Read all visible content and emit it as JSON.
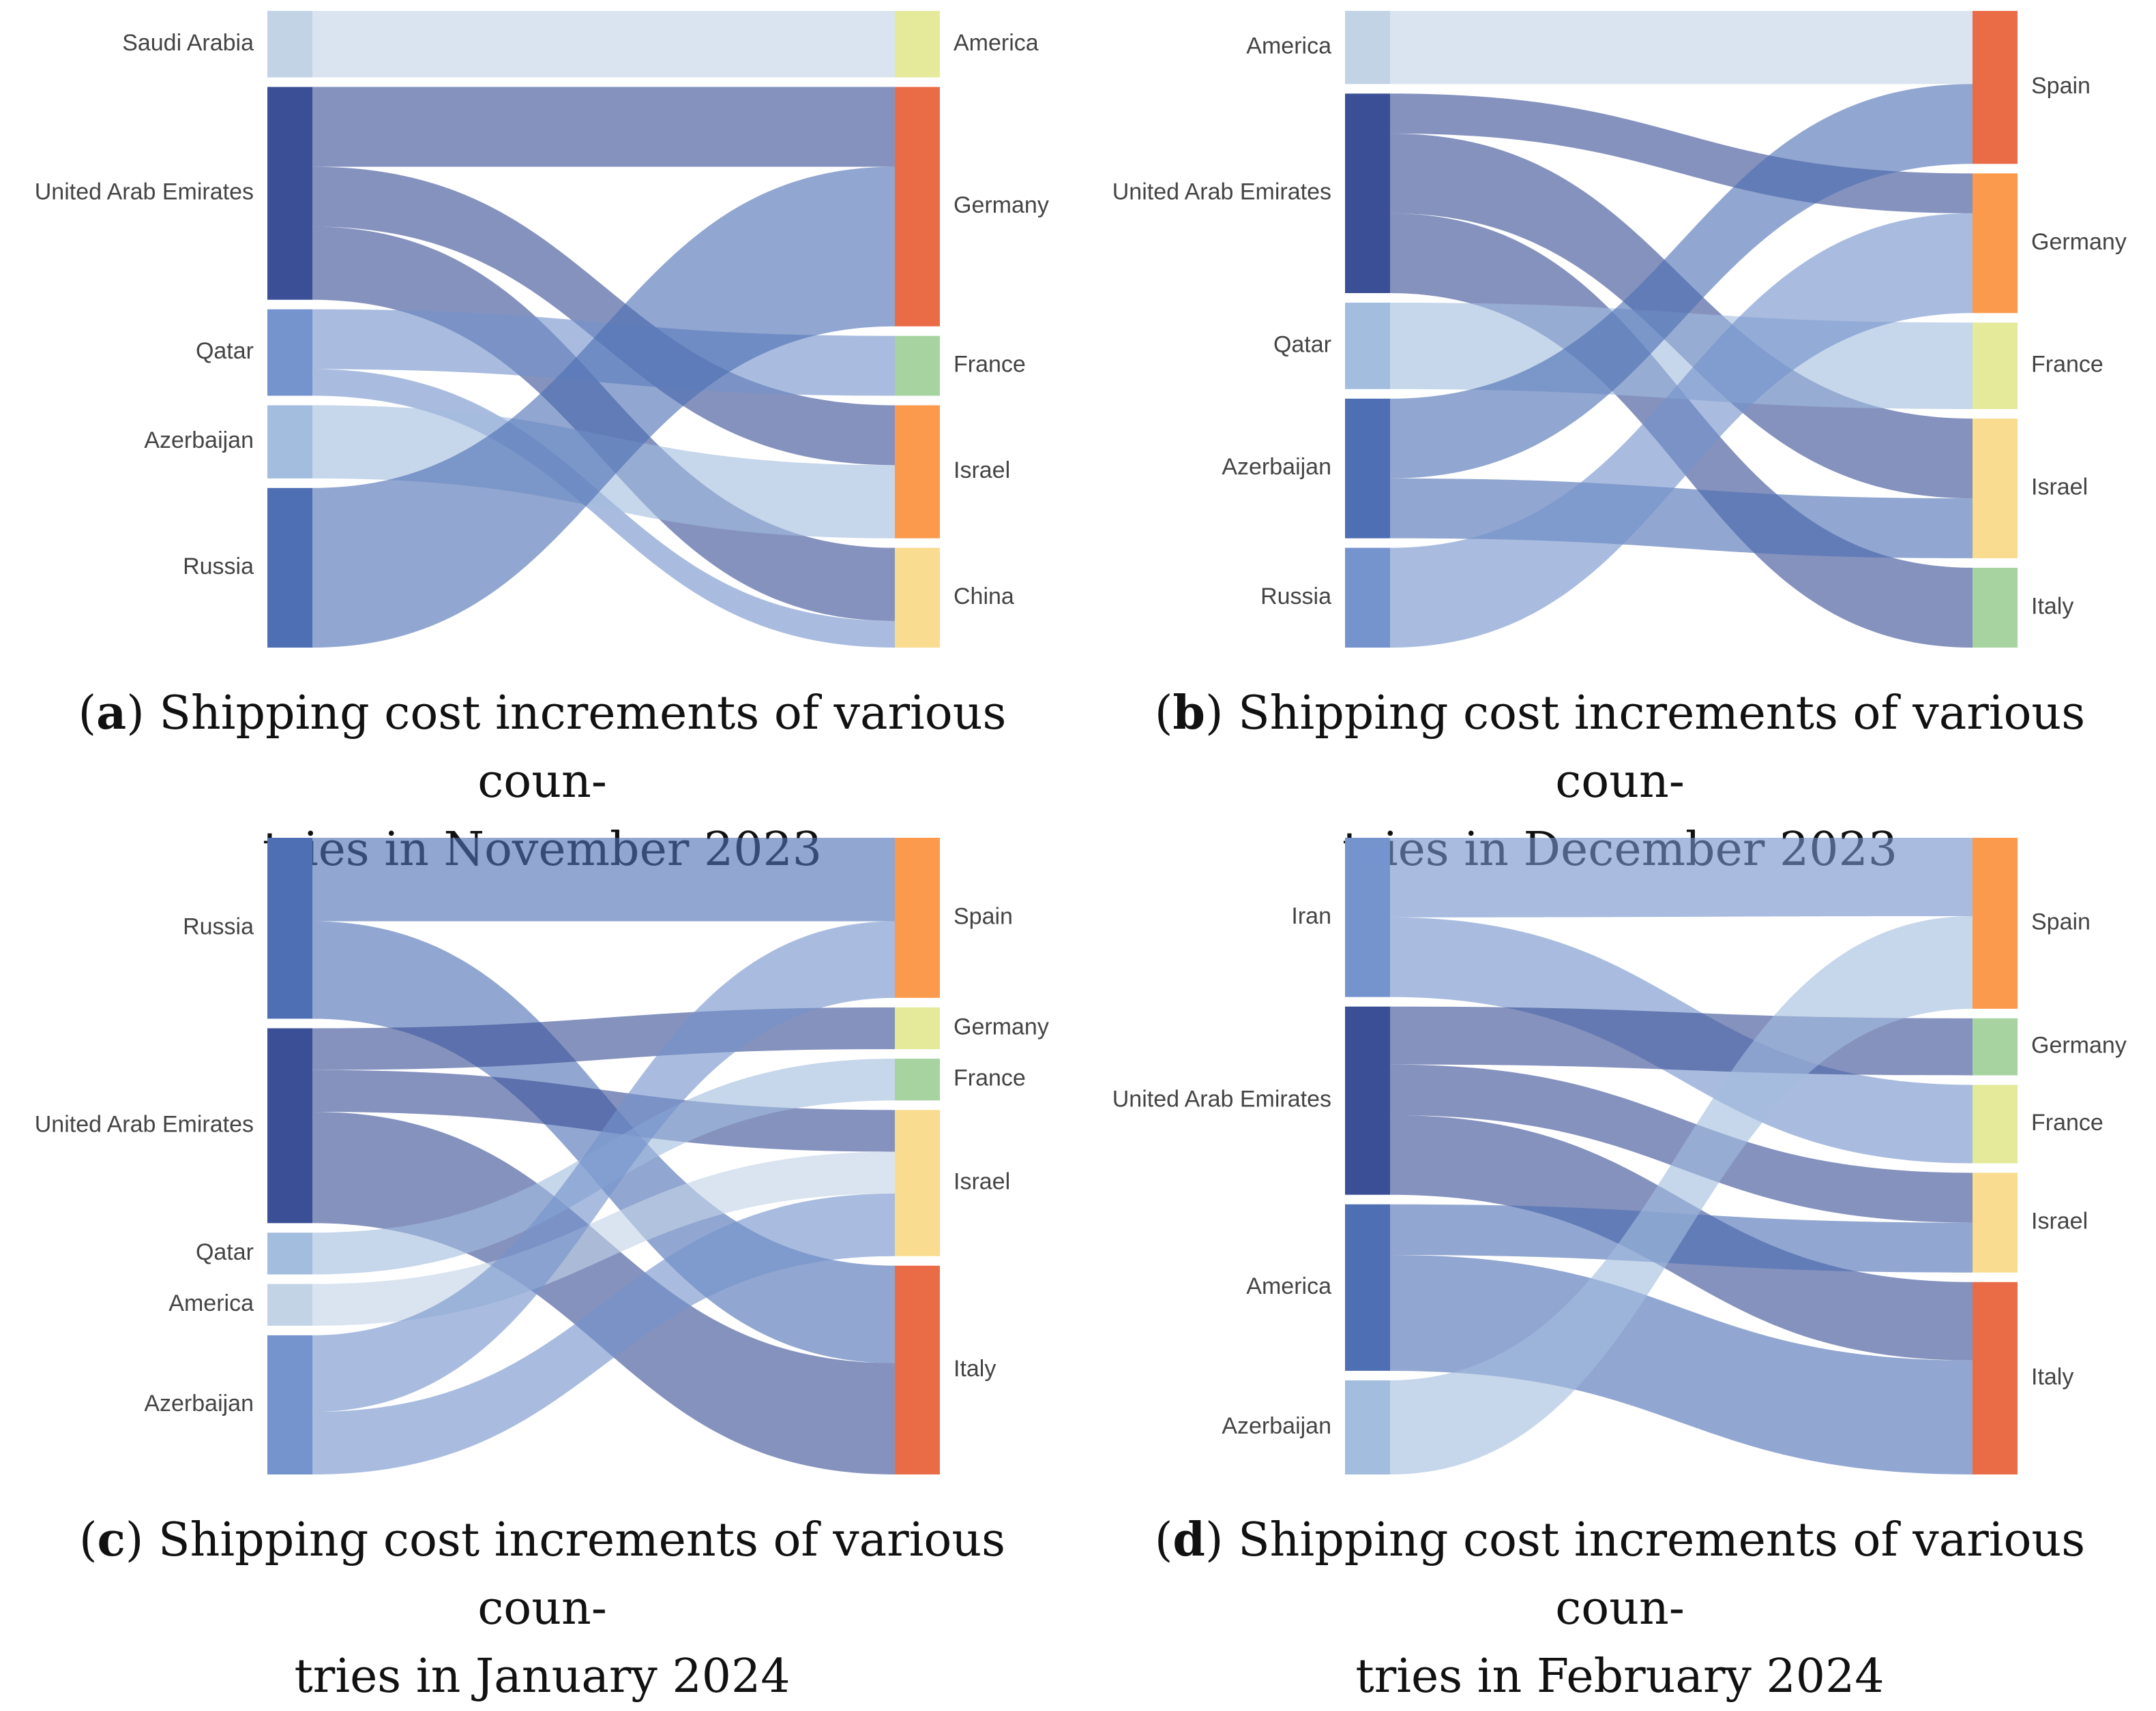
{
  "chart_data": [
    {
      "type": "sankey",
      "panel": "a",
      "caption_tag": "a",
      "caption_line1": "Shipping cost increments of various coun-",
      "caption_line2": "tries in November 2023",
      "sources": [
        {
          "name": "Saudi Arabia",
          "color": "#c3d3e6"
        },
        {
          "name": "United Arab Emirates",
          "color": "#3a4f96"
        },
        {
          "name": "Qatar",
          "color": "#7593cc"
        },
        {
          "name": "Azerbaijan",
          "color": "#a3bddf"
        },
        {
          "name": "Russia",
          "color": "#4e6fb3"
        }
      ],
      "targets": [
        {
          "name": "America",
          "color": "#e4ea99"
        },
        {
          "name": "Germany",
          "color": "#ea6c47"
        },
        {
          "name": "France",
          "color": "#a6d3a0"
        },
        {
          "name": "Israel",
          "color": "#fb9a4c"
        },
        {
          "name": "China",
          "color": "#f9dc8f"
        }
      ],
      "links": [
        {
          "source": "Saudi Arabia",
          "target": "America",
          "value": 10
        },
        {
          "source": "United Arab Emirates",
          "target": "Germany",
          "value": 12
        },
        {
          "source": "United Arab Emirates",
          "target": "Israel",
          "value": 9
        },
        {
          "source": "United Arab Emirates",
          "target": "China",
          "value": 11
        },
        {
          "source": "Qatar",
          "target": "France",
          "value": 9
        },
        {
          "source": "Qatar",
          "target": "China",
          "value": 4
        },
        {
          "source": "Azerbaijan",
          "target": "Israel",
          "value": 11
        },
        {
          "source": "Russia",
          "target": "Germany",
          "value": 24
        }
      ]
    },
    {
      "type": "sankey",
      "panel": "b",
      "caption_tag": "b",
      "caption_line1": "Shipping cost increments of various coun-",
      "caption_line2": "tries in December 2023",
      "sources": [
        {
          "name": "America",
          "color": "#c3d3e6"
        },
        {
          "name": "United Arab Emirates",
          "color": "#3a4f96"
        },
        {
          "name": "Qatar",
          "color": "#a3bddf"
        },
        {
          "name": "Azerbaijan",
          "color": "#4e6fb3"
        },
        {
          "name": "Russia",
          "color": "#7593cc"
        }
      ],
      "targets": [
        {
          "name": "Spain",
          "color": "#ea6c47"
        },
        {
          "name": "Germany",
          "color": "#fb9a4c"
        },
        {
          "name": "France",
          "color": "#e4ea99"
        },
        {
          "name": "Israel",
          "color": "#f9dc8f"
        },
        {
          "name": "Italy",
          "color": "#a6d3a0"
        }
      ],
      "links": [
        {
          "source": "America",
          "target": "Spain",
          "value": 11
        },
        {
          "source": "United Arab Emirates",
          "target": "Germany",
          "value": 6
        },
        {
          "source": "United Arab Emirates",
          "target": "Israel",
          "value": 12
        },
        {
          "source": "United Arab Emirates",
          "target": "Italy",
          "value": 12
        },
        {
          "source": "Qatar",
          "target": "France",
          "value": 13
        },
        {
          "source": "Azerbaijan",
          "target": "Spain",
          "value": 12
        },
        {
          "source": "Azerbaijan",
          "target": "Israel",
          "value": 9
        },
        {
          "source": "Russia",
          "target": "Germany",
          "value": 15
        }
      ]
    },
    {
      "type": "sankey",
      "panel": "c",
      "caption_tag": "c",
      "caption_line1": "Shipping cost increments of various coun-",
      "caption_line2": "tries in January 2024",
      "sources": [
        {
          "name": "Russia",
          "color": "#4e6fb3"
        },
        {
          "name": "United Arab Emirates",
          "color": "#3a4f96"
        },
        {
          "name": "Qatar",
          "color": "#a3bddf"
        },
        {
          "name": "America",
          "color": "#c3d3e6"
        },
        {
          "name": "Azerbaijan",
          "color": "#7593cc"
        }
      ],
      "targets": [
        {
          "name": "Spain",
          "color": "#fb9a4c"
        },
        {
          "name": "Germany",
          "color": "#e4ea99"
        },
        {
          "name": "France",
          "color": "#a6d3a0"
        },
        {
          "name": "Israel",
          "color": "#f9dc8f"
        },
        {
          "name": "Italy",
          "color": "#ea6c47"
        }
      ],
      "links": [
        {
          "source": "Russia",
          "target": "Spain",
          "value": 12
        },
        {
          "source": "Russia",
          "target": "Italy",
          "value": 14
        },
        {
          "source": "United Arab Emirates",
          "target": "Germany",
          "value": 6
        },
        {
          "source": "United Arab Emirates",
          "target": "Israel",
          "value": 6
        },
        {
          "source": "United Arab Emirates",
          "target": "Italy",
          "value": 16
        },
        {
          "source": "Qatar",
          "target": "France",
          "value": 6
        },
        {
          "source": "America",
          "target": "Israel",
          "value": 6
        },
        {
          "source": "Azerbaijan",
          "target": "Spain",
          "value": 11
        },
        {
          "source": "Azerbaijan",
          "target": "Israel",
          "value": 9
        }
      ]
    },
    {
      "type": "sankey",
      "panel": "d",
      "caption_tag": "d",
      "caption_line1": "Shipping cost increments of various coun-",
      "caption_line2": "tries in February 2024",
      "sources": [
        {
          "name": "Iran",
          "color": "#7593cc"
        },
        {
          "name": "United Arab Emirates",
          "color": "#3a4f96"
        },
        {
          "name": "America",
          "color": "#4e6fb3"
        },
        {
          "name": "Azerbaijan",
          "color": "#a3bddf"
        }
      ],
      "targets": [
        {
          "name": "Spain",
          "color": "#fb9a4c"
        },
        {
          "name": "Germany",
          "color": "#a6d3a0"
        },
        {
          "name": "France",
          "color": "#e4ea99"
        },
        {
          "name": "Israel",
          "color": "#f9dc8f"
        },
        {
          "name": "Italy",
          "color": "#ea6c47"
        }
      ],
      "links": [
        {
          "source": "Iran",
          "target": "Spain",
          "value": 11
        },
        {
          "source": "Iran",
          "target": "France",
          "value": 11
        },
        {
          "source": "United Arab Emirates",
          "target": "Germany",
          "value": 8
        },
        {
          "source": "United Arab Emirates",
          "target": "Israel",
          "value": 7
        },
        {
          "source": "United Arab Emirates",
          "target": "Italy",
          "value": 11
        },
        {
          "source": "America",
          "target": "Israel",
          "value": 7
        },
        {
          "source": "America",
          "target": "Italy",
          "value": 16
        },
        {
          "source": "Azerbaijan",
          "target": "Spain",
          "value": 13
        }
      ]
    }
  ]
}
